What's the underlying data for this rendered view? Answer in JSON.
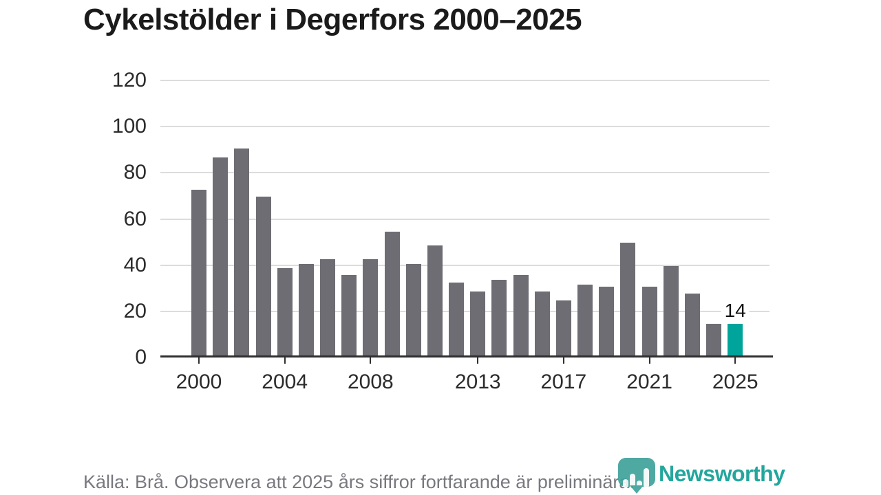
{
  "chart_data": {
    "type": "bar",
    "title": "Cykelstölder i Degerfors 2000–2025",
    "categories": [
      2000,
      2001,
      2002,
      2003,
      2004,
      2005,
      2006,
      2007,
      2008,
      2009,
      2010,
      2011,
      2012,
      2013,
      2014,
      2015,
      2016,
      2017,
      2018,
      2019,
      2020,
      2021,
      2022,
      2023,
      2024,
      2025
    ],
    "values": [
      72,
      86,
      90,
      69,
      38,
      40,
      42,
      35,
      42,
      54,
      40,
      48,
      32,
      28,
      33,
      35,
      28,
      24,
      31,
      30,
      49,
      30,
      39,
      27,
      14,
      14
    ],
    "y_ticks": [
      0,
      20,
      40,
      60,
      80,
      100,
      120
    ],
    "ylim": [
      0,
      120
    ],
    "x_tick_labels": [
      "2000",
      "2004",
      "2008",
      "2013",
      "2017",
      "2021",
      "2025"
    ],
    "grid": true,
    "legend": false,
    "bar_color": "#6e6d73",
    "highlight_color": "#00a49b",
    "highlight_index": 25,
    "annotation": {
      "index": 25,
      "text": "14"
    }
  },
  "footer": {
    "source_text": "Källa: Brå. Observera att 2025 års siffror fortfarande är preliminära."
  },
  "logo": {
    "wordmark": "Newsworthy",
    "wordmark_color": "#23a69d",
    "icon_color": "#3fa29b",
    "icon": "newsworthy-pin-chart-icon"
  }
}
